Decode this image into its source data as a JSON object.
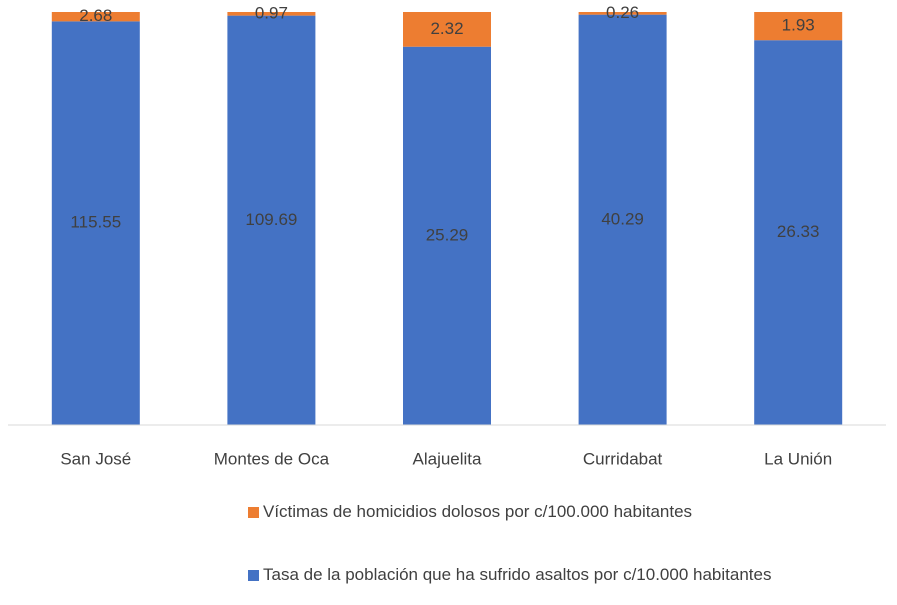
{
  "chart_data": {
    "type": "bar",
    "stacked": true,
    "percent": true,
    "categories": [
      "San José",
      "Montes de Oca",
      "Alajuelita",
      "Curridabat",
      "La Unión"
    ],
    "series": [
      {
        "name": "Tasa de la población que ha sufrido asaltos por c/10.000 habitantes",
        "color": "#4472c4",
        "values": [
          115.55,
          109.69,
          25.29,
          40.29,
          26.33
        ]
      },
      {
        "name": "Víctimas de homicidios dolosos por c/100.000 habitantes",
        "color": "#ed7d31",
        "values": [
          2.68,
          0.97,
          2.32,
          0.26,
          1.93
        ]
      }
    ]
  }
}
